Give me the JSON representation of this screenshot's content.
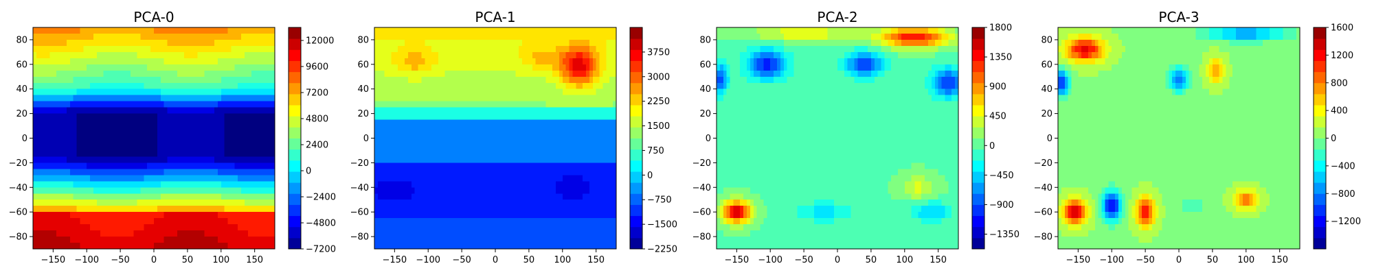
{
  "chart_data": [
    {
      "type": "heatmap",
      "title": "PCA-0",
      "xticks": [
        -150,
        -100,
        -50,
        0,
        50,
        100,
        150
      ],
      "yticks": [
        -80,
        -60,
        -40,
        -20,
        0,
        20,
        40,
        60,
        80
      ],
      "xlim": [
        -180,
        180
      ],
      "ylim": [
        -90,
        90
      ],
      "colorbar": {
        "min": -7200,
        "max": 13200,
        "ticks": [
          "−7200",
          "−4800",
          "−2400",
          "0",
          "2400",
          "4800",
          "7200",
          "9600",
          "12000"
        ],
        "tick_values": [
          -7200,
          -4800,
          -2400,
          0,
          2400,
          4800,
          7200,
          9600,
          12000
        ]
      },
      "colormap": "jet"
    },
    {
      "type": "heatmap",
      "title": "PCA-1",
      "xticks": [
        -150,
        -100,
        -50,
        0,
        50,
        100,
        150
      ],
      "yticks": [
        -80,
        -60,
        -40,
        -20,
        0,
        20,
        40,
        60,
        80
      ],
      "xlim": [
        -180,
        180
      ],
      "ylim": [
        -90,
        90
      ],
      "colorbar": {
        "min": -2250,
        "max": 4500,
        "ticks": [
          "−2250",
          "−1500",
          "−750",
          "0",
          "750",
          "1500",
          "2250",
          "3000",
          "3750"
        ],
        "tick_values": [
          -2250,
          -1500,
          -750,
          0,
          750,
          1500,
          2250,
          3000,
          3750
        ]
      },
      "colormap": "jet"
    },
    {
      "type": "heatmap",
      "title": "PCA-2",
      "xticks": [
        -150,
        -100,
        -50,
        0,
        50,
        100,
        150
      ],
      "yticks": [
        -80,
        -60,
        -40,
        -20,
        0,
        20,
        40,
        60,
        80
      ],
      "xlim": [
        -180,
        180
      ],
      "ylim": [
        -90,
        90
      ],
      "colorbar": {
        "min": -1575,
        "max": 1800,
        "ticks": [
          "−1350",
          "−900",
          "−450",
          "0",
          "450",
          "900",
          "1350",
          "1800"
        ],
        "tick_values": [
          -1350,
          -900,
          -450,
          0,
          450,
          900,
          1350,
          1800
        ]
      },
      "colormap": "jet"
    },
    {
      "type": "heatmap",
      "title": "PCA-3",
      "xticks": [
        -150,
        -100,
        -50,
        0,
        50,
        100,
        150
      ],
      "yticks": [
        -80,
        -60,
        -40,
        -20,
        0,
        20,
        40,
        60,
        80
      ],
      "xlim": [
        -180,
        180
      ],
      "ylim": [
        -90,
        90
      ],
      "colorbar": {
        "min": -1600,
        "max": 1600,
        "ticks": [
          "−1200",
          "−800",
          "−400",
          "0",
          "400",
          "800",
          "1200",
          "1600"
        ],
        "tick_values": [
          -1200,
          -800,
          -400,
          0,
          400,
          800,
          1200,
          1600
        ]
      },
      "colormap": "jet"
    }
  ]
}
